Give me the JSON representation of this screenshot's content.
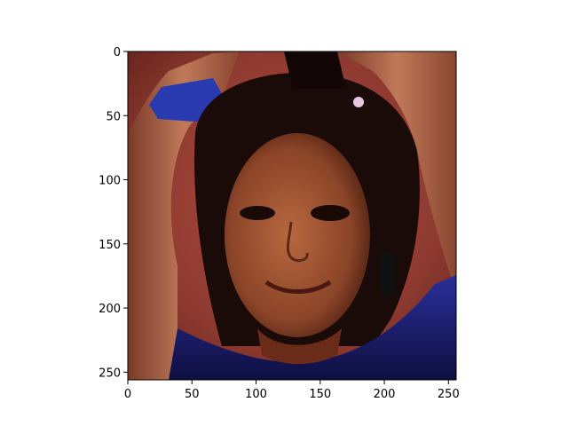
{
  "chart_data": {
    "type": "image",
    "title": "",
    "xlabel": "",
    "ylabel": "",
    "xlim": [
      0,
      256
    ],
    "ylim": [
      256,
      0
    ],
    "image_shape": [
      256,
      256
    ],
    "x_ticks": [
      {
        "value": 0,
        "label": "0"
      },
      {
        "value": 50,
        "label": "50"
      },
      {
        "value": 100,
        "label": "100"
      },
      {
        "value": 150,
        "label": "150"
      },
      {
        "value": 200,
        "label": "200"
      },
      {
        "value": 250,
        "label": "250"
      }
    ],
    "y_ticks": [
      {
        "value": 0,
        "label": "0"
      },
      {
        "value": 50,
        "label": "50"
      },
      {
        "value": 100,
        "label": "100"
      },
      {
        "value": 150,
        "label": "150"
      },
      {
        "value": 200,
        "label": "200"
      },
      {
        "value": 250,
        "label": "250"
      }
    ],
    "grid": false,
    "image_description": "Portrait photo of a smiling young woman with dark hair, hands raised above her head, blue wristband, reddish background, blue top",
    "colors": {
      "background": "#9a3e32",
      "skin": "#a0583c",
      "hair": "#160808",
      "top": "#1c1f7a",
      "wristband": "#2a3ab0"
    }
  }
}
